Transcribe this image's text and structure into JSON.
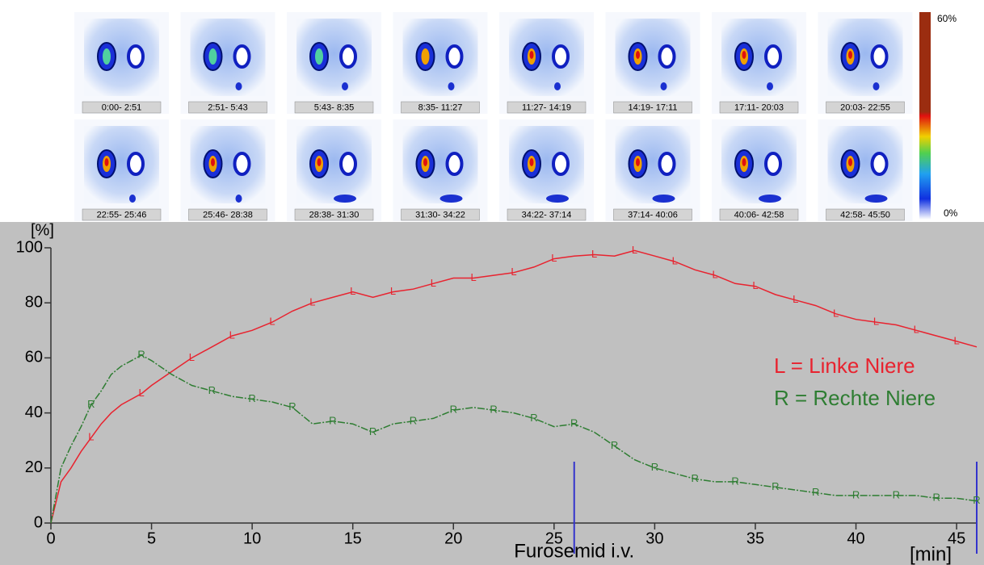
{
  "scan": {
    "frames": [
      "0:00- 2:51",
      "2:51- 5:43",
      "5:43- 8:35",
      "8:35- 11:27",
      "11:27- 14:19",
      "14:19- 17:11",
      "17:11- 20:03",
      "20:03- 22:55",
      "22:55- 25:46",
      "25:46- 28:38",
      "28:38- 31:30",
      "31:30- 34:22",
      "34:22- 37:14",
      "37:14- 40:06",
      "40:06- 42:58",
      "42:58- 45:50"
    ],
    "scale_labels": [
      "60%",
      "0%"
    ]
  },
  "chart_data": {
    "type": "line",
    "y_label": "[%]",
    "x_label": "[min]",
    "annotations": [
      {
        "text": "Furosemid i.v.",
        "x": 26
      }
    ],
    "vlines": [
      26,
      46
    ],
    "vline_color": "#3333cc",
    "x": [
      0,
      0.5,
      1,
      1.5,
      2,
      2.5,
      3,
      3.5,
      4,
      4.5,
      5,
      6,
      7,
      8,
      9,
      10,
      11,
      12,
      13,
      14,
      15,
      16,
      17,
      18,
      19,
      20,
      21,
      22,
      23,
      24,
      25,
      26,
      27,
      28,
      29,
      30,
      31,
      32,
      33,
      34,
      35,
      36,
      37,
      38,
      39,
      40,
      41,
      42,
      43,
      44,
      45,
      46
    ],
    "series": [
      {
        "name": "L = Linke Niere",
        "marker": "L",
        "color": "#e8232f",
        "values": [
          0,
          15,
          20,
          26,
          31,
          36,
          40,
          43,
          45,
          47,
          50,
          55,
          60,
          64,
          68,
          70,
          73,
          77,
          80,
          82,
          84,
          82,
          84,
          85,
          87,
          89,
          89,
          90,
          91,
          93,
          96,
          97,
          97.5,
          97,
          99,
          97,
          95,
          92,
          90,
          87,
          86,
          83,
          81,
          79,
          76,
          74,
          73,
          72,
          70,
          68,
          66,
          64
        ]
      },
      {
        "name": "R = Rechte Niere",
        "marker": "R",
        "color": "#2e7d32",
        "values": [
          0,
          20,
          28,
          35,
          43,
          48,
          54,
          57,
          59,
          61,
          59,
          54,
          50,
          48,
          46,
          45,
          44,
          42,
          36,
          37,
          36,
          33,
          36,
          37,
          38,
          41,
          42,
          41,
          40,
          38,
          35,
          36,
          33,
          28,
          23,
          20,
          18,
          16,
          15,
          15,
          14,
          13,
          12,
          11,
          10,
          10,
          10,
          10,
          10,
          9,
          9,
          8
        ]
      }
    ],
    "xlim": [
      0,
      46
    ],
    "ylim": [
      0,
      100
    ],
    "xticks": [
      0,
      5,
      10,
      15,
      20,
      25,
      30,
      35,
      40,
      45
    ],
    "yticks": [
      0,
      20,
      40,
      60,
      80,
      100
    ]
  }
}
